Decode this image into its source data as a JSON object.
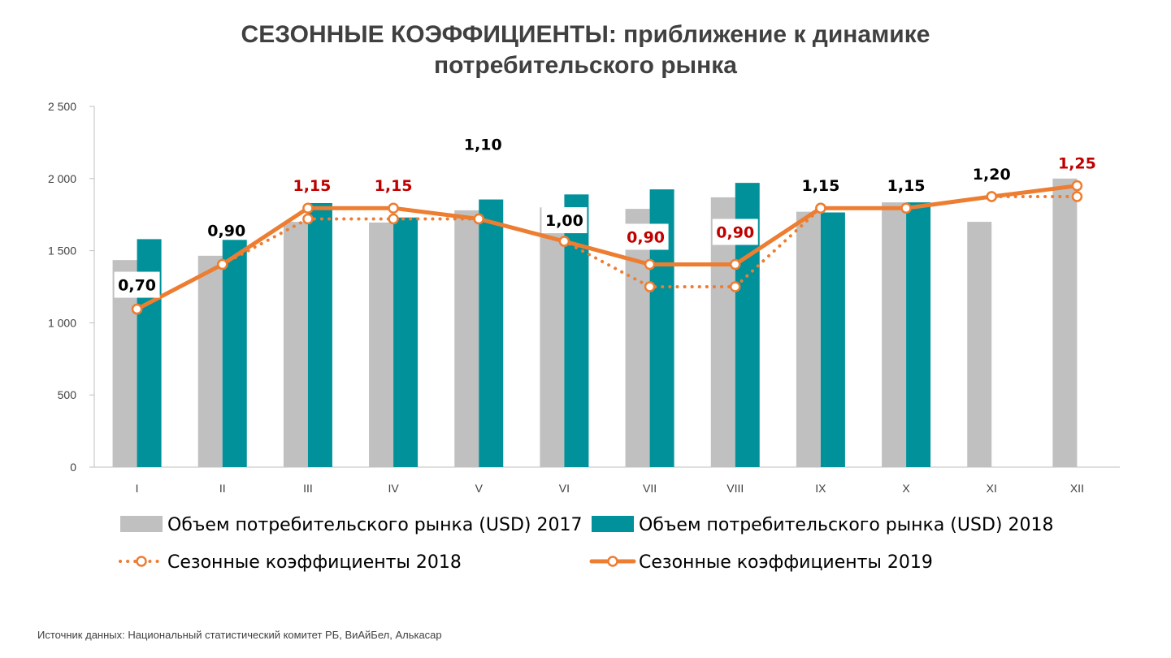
{
  "title": {
    "line1": "СЕЗОННЫЕ КОЭФФИЦИЕНТЫ: приближение к динамике",
    "line2": "потребительского рынка"
  },
  "source": "Источник данных: Национальный статистический комитет РБ, ВиАйБел, Алькасар",
  "chart_data": {
    "type": "bar",
    "title": "СЕЗОННЫЕ КОЭФФИЦИЕНТЫ: приближение к динамике потребительского рынка",
    "categories": [
      "I",
      "II",
      "III",
      "IV",
      "V",
      "VI",
      "VII",
      "VIII",
      "IX",
      "X",
      "XI",
      "XII"
    ],
    "ylim": [
      0,
      2500
    ],
    "yticks": [
      0,
      500,
      1000,
      1500,
      2000,
      2500
    ],
    "ytick_labels": [
      "0",
      "500",
      "1 000",
      "1 500",
      "2 000",
      "2 500"
    ],
    "grid": false,
    "legend_position": "bottom",
    "series": [
      {
        "name": "Объем потребительского рынка (USD) 2017",
        "kind": "bar",
        "color": "#C0C0C0",
        "values": [
          1435,
          1465,
          1700,
          1695,
          1780,
          1800,
          1790,
          1870,
          1770,
          1835,
          1700,
          2000
        ]
      },
      {
        "name": "Объем потребительского рынка (USD) 2018",
        "kind": "bar",
        "color": "#00919A",
        "values": [
          1580,
          1575,
          1830,
          1730,
          1855,
          1890,
          1925,
          1970,
          1765,
          1835,
          null,
          null
        ]
      },
      {
        "name": "Сезонные коэффициенты 2018",
        "kind": "line",
        "style": "dotted",
        "color": "#ED7D31",
        "values": [
          1095,
          1405,
          1720,
          1720,
          1720,
          1565,
          1250,
          1250,
          1795,
          1795,
          1875,
          1875
        ]
      },
      {
        "name": "Сезонные коэффициенты 2019",
        "kind": "line",
        "style": "solid",
        "color": "#ED7D31",
        "values": [
          1095,
          1405,
          1795,
          1795,
          1720,
          1565,
          1405,
          1405,
          1795,
          1795,
          1875,
          1950
        ]
      }
    ],
    "data_labels": [
      {
        "category": "I",
        "text": "0,70",
        "color": "#000000",
        "boxed": true
      },
      {
        "category": "II",
        "text": "0,90",
        "color": "#000000",
        "boxed": false
      },
      {
        "category": "III",
        "text": "1,15",
        "color": "#C00000",
        "boxed": false
      },
      {
        "category": "IV",
        "text": "1,15",
        "color": "#C00000",
        "boxed": false
      },
      {
        "category": "V",
        "text": "1,10",
        "color": "#000000",
        "boxed": false
      },
      {
        "category": "VI",
        "text": "1,00",
        "color": "#000000",
        "boxed": true
      },
      {
        "category": "VII",
        "text": "0,90",
        "color": "#C00000",
        "boxed": true
      },
      {
        "category": "VIII",
        "text": "0,90",
        "color": "#C00000",
        "boxed": true
      },
      {
        "category": "IX",
        "text": "1,15",
        "color": "#000000",
        "boxed": false
      },
      {
        "category": "X",
        "text": "1,15",
        "color": "#000000",
        "boxed": false
      },
      {
        "category": "XI",
        "text": "1,20",
        "color": "#000000",
        "boxed": false
      },
      {
        "category": "XII",
        "text": "1,25",
        "color": "#C00000",
        "boxed": false
      }
    ]
  }
}
